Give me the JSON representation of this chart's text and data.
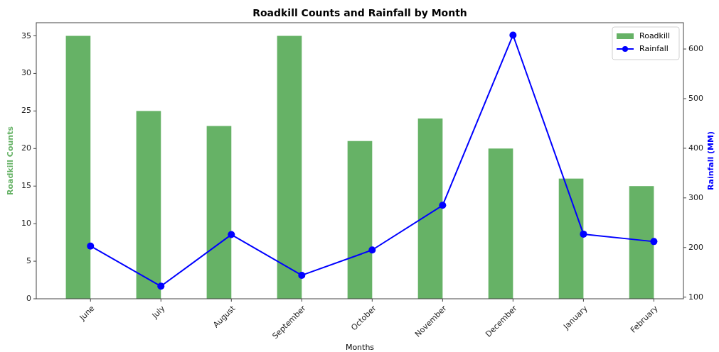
{
  "chart_data": {
    "type": "bar",
    "title": "Roadkill Counts and Rainfall by Month",
    "xlabel": "Months",
    "ylabel": "Roadkill Counts",
    "y2label": "Rainfall (MM)",
    "categories": [
      "June",
      "July",
      "August",
      "September",
      "October",
      "November",
      "December",
      "January",
      "February"
    ],
    "series": [
      {
        "name": "Roadkill",
        "color": "#66b266",
        "values": [
          35,
          25,
          23,
          35,
          21,
          24,
          20,
          16,
          15
        ]
      },
      {
        "name": "Rainfall",
        "type": "line",
        "axis": "y2",
        "color": "#0000ff",
        "marker": "circle",
        "values": [
          203,
          122,
          226,
          144,
          195,
          285,
          628,
          227,
          212
        ]
      }
    ],
    "ylim": [
      0,
      36.75
    ],
    "yticks": [
      0,
      5,
      10,
      15,
      20,
      25,
      30,
      35
    ],
    "y2lim": [
      96.7,
      653
    ],
    "y2ticks": [
      100,
      200,
      300,
      400,
      500,
      600
    ],
    "legend": "top right"
  }
}
